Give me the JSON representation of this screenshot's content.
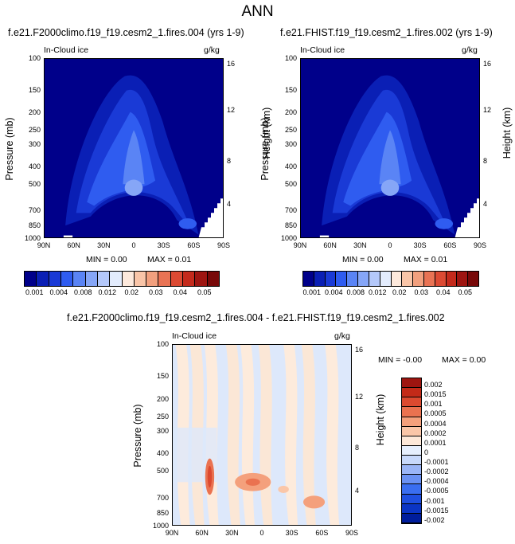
{
  "title": "ANN",
  "colors": {
    "top_levels": [
      "#00008a",
      "#0a1fb5",
      "#1a3ad6",
      "#2f5cf0",
      "#5a84f5",
      "#86a6f7",
      "#b4c8fa",
      "#e3ecfd",
      "#fde9dc",
      "#f9c5a8",
      "#f2a07e",
      "#e97354",
      "#dc4a33",
      "#c42a1c",
      "#9e1511",
      "#780808"
    ],
    "diff_levels": [
      "#001d9c",
      "#0b35c5",
      "#1f4fe0",
      "#3a6ef0",
      "#6a91f3",
      "#9ab5f7",
      "#c8d9fb",
      "#e6effd",
      "#fde8d8",
      "#fac6a8",
      "#f4a07c",
      "#ea7250",
      "#dc4a30",
      "#c32a18",
      "#9e1510"
    ]
  },
  "top_colorbar_labels": [
    "0.001",
    "0.004",
    "0.008",
    "0.012",
    "0.02",
    "0.03",
    "0.04",
    "0.05"
  ],
  "diff_colorbar_labels": [
    "0.002",
    "0.0015",
    "0.001",
    "0.0005",
    "0.0004",
    "0.0002",
    "0.0001",
    "0",
    "-0.0001",
    "-0.0002",
    "-0.0004",
    "-0.0005",
    "-0.001",
    "-0.0015",
    "-0.002"
  ],
  "chart_data": [
    {
      "type": "heatmap",
      "title": "f.e21.F2000climo.f19_f19.cesm2_1.fires.004 (yrs 1-9)",
      "field_label": "In-Cloud ice",
      "units": "g/kg",
      "xlabel": "",
      "ylabel": "Pressure (mb)",
      "ylabel_right": "Height (km)",
      "x_ticks": [
        "90N",
        "60N",
        "30N",
        "0",
        "30S",
        "60S",
        "90S"
      ],
      "y_ticks": [
        "100",
        "150",
        "200",
        "250",
        "300",
        "400",
        "500",
        "700",
        "850",
        "1000"
      ],
      "y_ticks_right": [
        "16",
        "12",
        "8",
        "4"
      ],
      "min_text": "MIN =   0.00",
      "max_text": "MAX =   0.01",
      "min": 0.0,
      "max": 0.01
    },
    {
      "type": "heatmap",
      "title": "f.e21.FHIST.f19_f19.cesm2_1.fires.002 (yrs 1-9)",
      "field_label": "In-Cloud ice",
      "units": "g/kg",
      "xlabel": "",
      "ylabel": "Pressure (mb)",
      "ylabel_right": "Height (km)",
      "x_ticks": [
        "90N",
        "60N",
        "30N",
        "0",
        "30S",
        "60S",
        "90S"
      ],
      "y_ticks": [
        "100",
        "150",
        "200",
        "250",
        "300",
        "400",
        "500",
        "700",
        "850",
        "1000"
      ],
      "y_ticks_right": [
        "16",
        "12",
        "8",
        "4"
      ],
      "min_text": "MIN =   0.00",
      "max_text": "MAX =   0.01",
      "min": 0.0,
      "max": 0.01
    },
    {
      "type": "heatmap",
      "title": "f.e21.F2000climo.f19_f19.cesm2_1.fires.004 - f.e21.FHIST.f19_f19.cesm2_1.fires.002",
      "field_label": "In-Cloud ice",
      "units": "g/kg",
      "xlabel": "",
      "ylabel": "Pressure (mb)",
      "ylabel_right": "Height (km)",
      "x_ticks": [
        "90N",
        "60N",
        "30N",
        "0",
        "30S",
        "60S",
        "90S"
      ],
      "y_ticks": [
        "100",
        "150",
        "200",
        "250",
        "300",
        "400",
        "500",
        "700",
        "850",
        "1000"
      ],
      "y_ticks_right": [
        "16",
        "12",
        "8",
        "4"
      ],
      "min_text": "MIN =  -0.00",
      "max_text": "MAX =   0.00",
      "min": -0.0,
      "max": 0.0
    }
  ]
}
